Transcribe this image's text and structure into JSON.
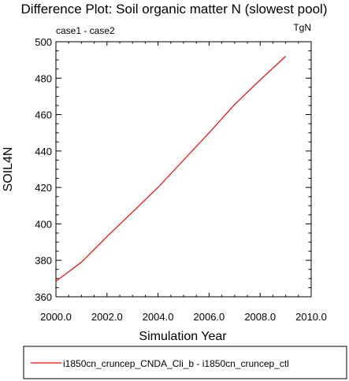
{
  "chart_data": {
    "type": "line",
    "title": "Difference Plot: Soil organic matter N (slowest pool)",
    "subtitle_left": "case1 - case2",
    "subtitle_right": "TgN",
    "xlabel": "Simulation Year",
    "ylabel": "SOIL4N",
    "xlim": [
      2000,
      2010
    ],
    "ylim": [
      360,
      500
    ],
    "x_ticks": [
      2000,
      2002,
      2004,
      2006,
      2008,
      2010
    ],
    "x_tick_labels": [
      "2000.0",
      "2002.0",
      "2004.0",
      "2006.0",
      "2008.0",
      "2010.0"
    ],
    "y_ticks": [
      360,
      380,
      400,
      420,
      440,
      460,
      480,
      500
    ],
    "y_tick_labels": [
      "360",
      "380",
      "400",
      "420",
      "440",
      "460",
      "480",
      "500"
    ],
    "grid": false,
    "legend_position": "bottom",
    "series": [
      {
        "name": "i1850cn_cruncep_CNDA_Cli_b - i1850cn_cruncep_ctl",
        "color": "#ff0000",
        "x": [
          2000,
          2001,
          2002,
          2003,
          2004,
          2005,
          2006,
          2007,
          2008,
          2009
        ],
        "y": [
          368.5,
          379,
          393,
          406.5,
          420,
          435,
          450,
          465.5,
          479,
          492
        ]
      }
    ]
  }
}
